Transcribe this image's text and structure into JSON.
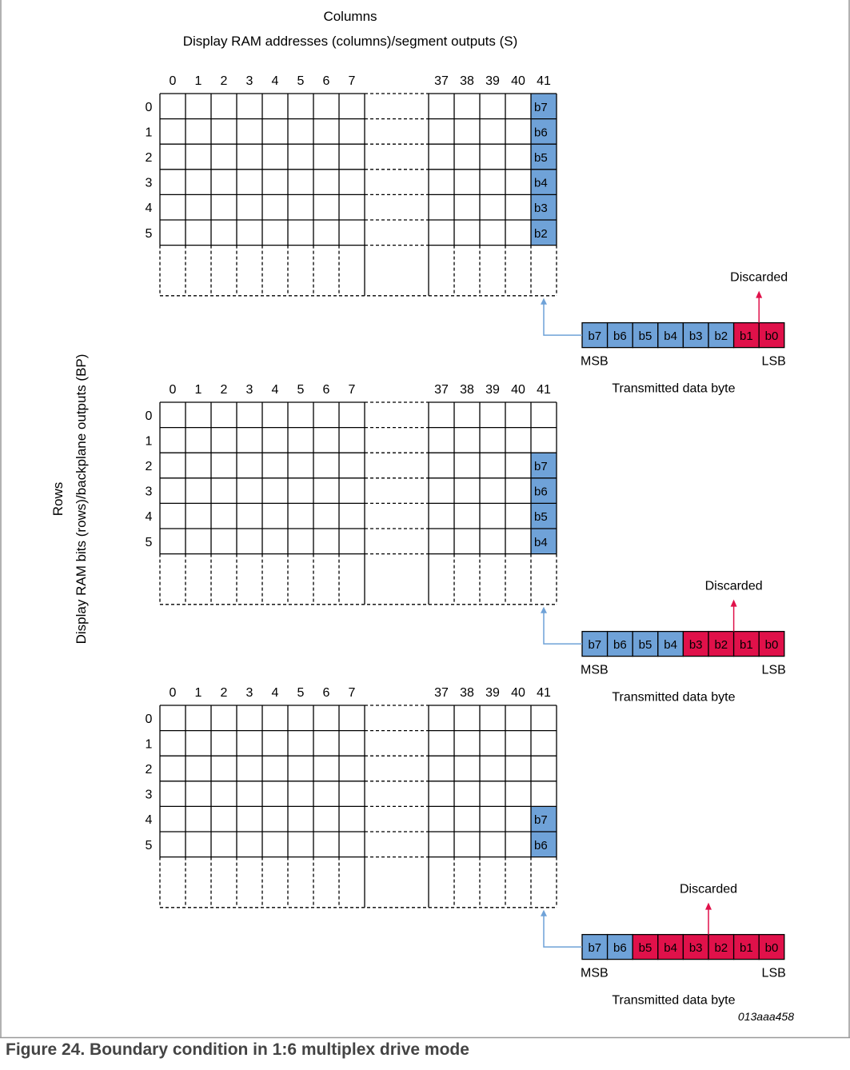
{
  "header": {
    "title": "Columns",
    "subtitle": "Display RAM addresses (columns)/segment outputs (S)"
  },
  "side_label": {
    "title": "Rows",
    "subtitle": "Display RAM bits (rows)/backplane outputs (BP)"
  },
  "column_labels": [
    "0",
    "1",
    "2",
    "3",
    "4",
    "5",
    "6",
    "7",
    "37",
    "38",
    "39",
    "40",
    "41"
  ],
  "row_labels": [
    "0",
    "1",
    "2",
    "3",
    "4",
    "5"
  ],
  "panels": [
    {
      "column41_cells": [
        {
          "row": 0,
          "bit": "b7"
        },
        {
          "row": 1,
          "bit": "b6"
        },
        {
          "row": 2,
          "bit": "b5"
        },
        {
          "row": 3,
          "bit": "b4"
        },
        {
          "row": 4,
          "bit": "b3"
        },
        {
          "row": 5,
          "bit": "b2"
        }
      ],
      "data_byte": {
        "bits": [
          "b7",
          "b6",
          "b5",
          "b4",
          "b3",
          "b2",
          "b1",
          "b0"
        ],
        "states": [
          "used",
          "used",
          "used",
          "used",
          "used",
          "used",
          "discarded",
          "discarded"
        ],
        "msb_label": "MSB",
        "lsb_label": "LSB",
        "caption": "Transmitted data byte",
        "discarded_label": "Discarded"
      }
    },
    {
      "column41_cells": [
        {
          "row": 2,
          "bit": "b7"
        },
        {
          "row": 3,
          "bit": "b6"
        },
        {
          "row": 4,
          "bit": "b5"
        },
        {
          "row": 5,
          "bit": "b4"
        }
      ],
      "data_byte": {
        "bits": [
          "b7",
          "b6",
          "b5",
          "b4",
          "b3",
          "b2",
          "b1",
          "b0"
        ],
        "states": [
          "used",
          "used",
          "used",
          "used",
          "discarded",
          "discarded",
          "discarded",
          "discarded"
        ],
        "msb_label": "MSB",
        "lsb_label": "LSB",
        "caption": "Transmitted data byte",
        "discarded_label": "Discarded"
      }
    },
    {
      "column41_cells": [
        {
          "row": 4,
          "bit": "b7"
        },
        {
          "row": 5,
          "bit": "b6"
        }
      ],
      "data_byte": {
        "bits": [
          "b7",
          "b6",
          "b5",
          "b4",
          "b3",
          "b2",
          "b1",
          "b0"
        ],
        "states": [
          "used",
          "used",
          "discarded",
          "discarded",
          "discarded",
          "discarded",
          "discarded",
          "discarded"
        ],
        "msb_label": "MSB",
        "lsb_label": "LSB",
        "caption": "Transmitted data byte",
        "discarded_label": "Discarded"
      }
    }
  ],
  "figure_id": "013aaa458",
  "caption": "Figure 24.  Boundary condition in 1:6 multiplex drive mode",
  "colors": {
    "used_bit": "#6fa2d8",
    "discarded_bit": "#e0114a",
    "link_arrow": "#6fa2d8",
    "discard_arrow": "#e0114a",
    "grid_line": "#000000",
    "frame": "#999999",
    "caption_text": "#444444"
  }
}
